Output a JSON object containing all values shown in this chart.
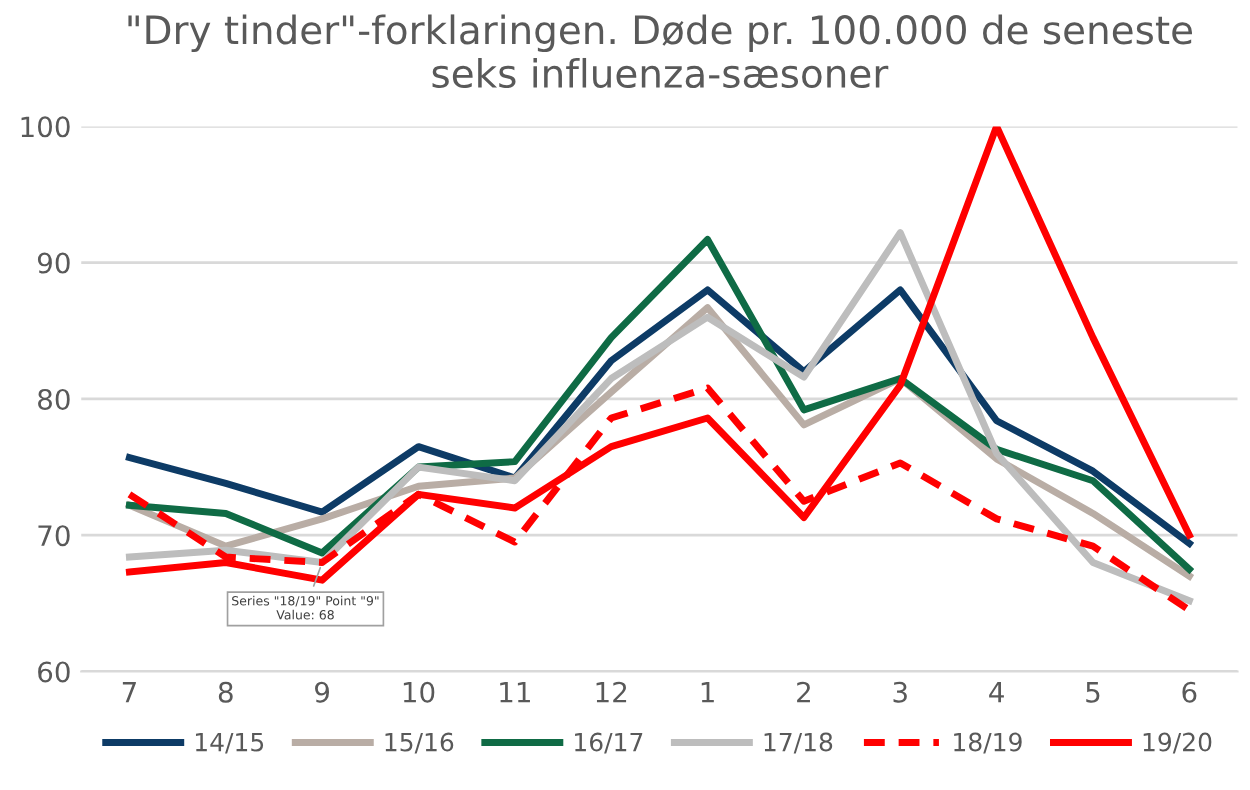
{
  "chart_data": {
    "type": "line",
    "title": "\"Dry tinder\"-forklaringen. Døde pr. 100.000 de seneste\nseks influenza-sæsoner",
    "categories": [
      "7",
      "8",
      "9",
      "10",
      "11",
      "12",
      "1",
      "2",
      "3",
      "4",
      "5",
      "6"
    ],
    "series": [
      {
        "name": "14/15",
        "color": "#0d3b66",
        "line_style": "solid",
        "values": [
          75.7,
          73.8,
          71.7,
          76.5,
          74.2,
          82.8,
          88,
          82,
          88,
          78.4,
          74.7,
          69.4
        ]
      },
      {
        "name": "15/16",
        "color": "#b9ada5",
        "line_style": "solid",
        "values": [
          72.2,
          69.2,
          71.2,
          73.6,
          74.2,
          80.5,
          86.7,
          78.1,
          81.5,
          75.6,
          71.6,
          67
        ]
      },
      {
        "name": "16/17",
        "color": "#0f6b45",
        "line_style": "solid",
        "values": [
          72.2,
          71.6,
          68.7,
          75,
          75.4,
          84.5,
          91.7,
          79.2,
          81.5,
          76.3,
          74,
          67.5
        ]
      },
      {
        "name": "17/18",
        "color": "#bdbdbd",
        "line_style": "solid",
        "values": [
          68.4,
          68.9,
          68,
          75,
          74,
          81.5,
          86,
          81.6,
          92.2,
          76,
          68,
          65.2
        ]
      },
      {
        "name": "18/19",
        "color": "#ff0000",
        "line_style": "dashed",
        "values": [
          73,
          68.4,
          68,
          73,
          69.5,
          78.6,
          80.8,
          72.5,
          75.3,
          71.2,
          69.2,
          64.5
        ]
      },
      {
        "name": "19/20",
        "color": "#ff0000",
        "line_style": "solid",
        "values": [
          67.3,
          68,
          66.7,
          73,
          72,
          76.5,
          78.6,
          71.3,
          81,
          100,
          84.5,
          70
        ]
      }
    ],
    "ylim": [
      60,
      100
    ],
    "yticks": [
      60,
      70,
      80,
      90,
      100
    ],
    "grid": "y",
    "legend": "bottom",
    "marker": "none",
    "annotations": [
      {
        "text": "Series \"18/19\" Point \"9\"\nValue: 68",
        "x": "9",
        "y": 68
      }
    ]
  }
}
